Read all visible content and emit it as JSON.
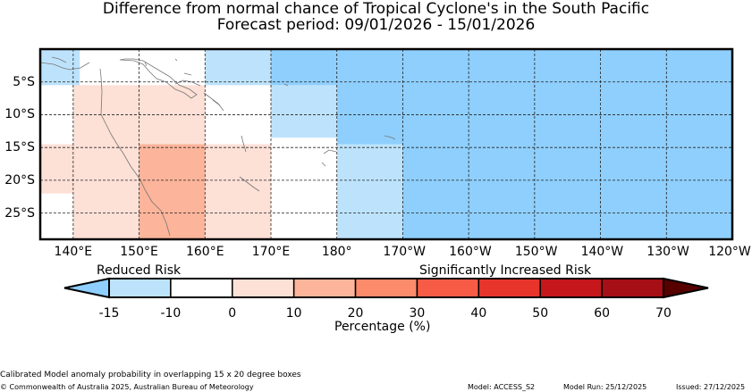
{
  "title_line1": "Difference from normal chance of Tropical Cyclone's in the South Pacific",
  "title_line2": "Forecast period: 09/01/2026 - 15/01/2026",
  "map": {
    "lon_range": [
      135,
      240
    ],
    "lat_range": [
      -29,
      0
    ],
    "lon_ticks": [
      {
        "lon": 140,
        "label": "140°E"
      },
      {
        "lon": 150,
        "label": "150°E"
      },
      {
        "lon": 160,
        "label": "160°E"
      },
      {
        "lon": 170,
        "label": "170°E"
      },
      {
        "lon": 180,
        "label": "180°"
      },
      {
        "lon": 190,
        "label": "170°W"
      },
      {
        "lon": 200,
        "label": "160°W"
      },
      {
        "lon": 210,
        "label": "150°W"
      },
      {
        "lon": 220,
        "label": "140°W"
      },
      {
        "lon": 230,
        "label": "130°W"
      },
      {
        "lon": 240,
        "label": "120°W"
      }
    ],
    "lat_ticks": [
      {
        "lat": -5,
        "label": "5°S"
      },
      {
        "lat": -10,
        "label": "10°S"
      },
      {
        "lat": -15,
        "label": "15°S"
      },
      {
        "lat": -20,
        "label": "20°S"
      },
      {
        "lat": -25,
        "label": "25°S"
      }
    ],
    "cells": [
      {
        "lon0": 135,
        "lon1": 141,
        "lat0": -5.5,
        "lat1": 0,
        "color": "#bde3fc"
      },
      {
        "lon0": 140,
        "lon1": 160,
        "lat0": -29,
        "lat1": -5.5,
        "color": "#fde0d6"
      },
      {
        "lon0": 135,
        "lon1": 141,
        "lat0": -22,
        "lat1": -14.5,
        "color": "#fde0d6"
      },
      {
        "lon0": 160,
        "lon1": 170,
        "lat0": -29,
        "lat1": -14.5,
        "color": "#fde0d6"
      },
      {
        "lon0": 150,
        "lon1": 160,
        "lat0": -29,
        "lat1": -14.5,
        "color": "#fcb49a"
      },
      {
        "lon0": 160,
        "lon1": 170,
        "lat0": -5.5,
        "lat1": 0,
        "color": "#bde3fc"
      },
      {
        "lon0": 170,
        "lon1": 180,
        "lat0": -5.5,
        "lat1": 0,
        "color": "#8fcffd"
      },
      {
        "lon0": 180,
        "lon1": 240,
        "lat0": -14.5,
        "lat1": 0,
        "color": "#8fcffd"
      },
      {
        "lon0": 170,
        "lon1": 180,
        "lat0": -13.5,
        "lat1": -5.5,
        "color": "#bde3fc"
      },
      {
        "lon0": 190,
        "lon1": 240,
        "lat0": -29,
        "lat1": -14.5,
        "color": "#8fcffd"
      },
      {
        "lon0": 180,
        "lon1": 190,
        "lat0": -29,
        "lat1": -14.5,
        "color": "#bde3fc"
      }
    ]
  },
  "colorbar": {
    "title": "Percentage (%)",
    "label_left": "Reduced Risk",
    "label_right": "Significantly Increased Risk",
    "below_color": "#8fcffd",
    "above_color": "#560000",
    "bins": [
      "#bde3fc",
      "#ffffff",
      "#fde0d6",
      "#fcb49a",
      "#fb8b6b",
      "#f85b45",
      "#e8352b",
      "#c6171c",
      "#a50f15"
    ],
    "ticks": [
      "-15",
      "-10",
      "0",
      "10",
      "20",
      "30",
      "40",
      "50",
      "60",
      "70"
    ]
  },
  "footer": {
    "line1": "Calibrated Model anomaly probability in overlapping 15 x 20 degree boxes",
    "line2": "© Commonwealth of Australia 2025, Australian Bureau of Meteorology",
    "model": "Model: ACCESS_S2",
    "model_run": "Model Run: 25/12/2025",
    "issued": "Issued: 27/12/2025"
  }
}
